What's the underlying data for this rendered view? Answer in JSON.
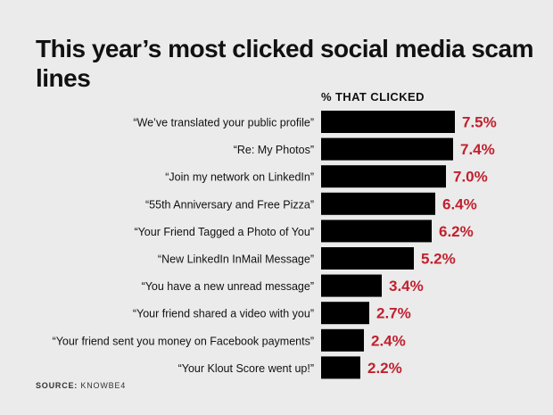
{
  "title": "This year’s most clicked social media scam lines",
  "source": {
    "label": "SOURCE:",
    "value": "KNOWBE4"
  },
  "colors": {
    "background": "#ebebeb",
    "bar": "#000000",
    "value_label": "#c0212e",
    "text": "#111111"
  },
  "chart_data": {
    "type": "bar",
    "orientation": "horizontal",
    "value_header": "% THAT CLICKED",
    "categories": [
      "“We’ve translated your public profile”",
      "“Re: My Photos”",
      "“Join my network on LinkedIn”",
      "“55th Anniversary and Free Pizza”",
      "“Your Friend Tagged a Photo of You”",
      "“New LinkedIn InMail Message”",
      "“You have a new unread message”",
      "“Your friend shared a video with you”",
      "“Your friend sent you money on Facebook payments”",
      "“Your Klout Score went up!”"
    ],
    "values": [
      7.5,
      7.4,
      7.0,
      6.4,
      6.2,
      5.2,
      3.4,
      2.7,
      2.4,
      2.2
    ],
    "value_labels": [
      "7.5%",
      "7.4%",
      "7.0%",
      "6.4%",
      "6.2%",
      "5.2%",
      "3.4%",
      "2.7%",
      "2.4%",
      "2.2%"
    ],
    "xlim": [
      0,
      7.5
    ],
    "grid": false,
    "legend": "none"
  }
}
